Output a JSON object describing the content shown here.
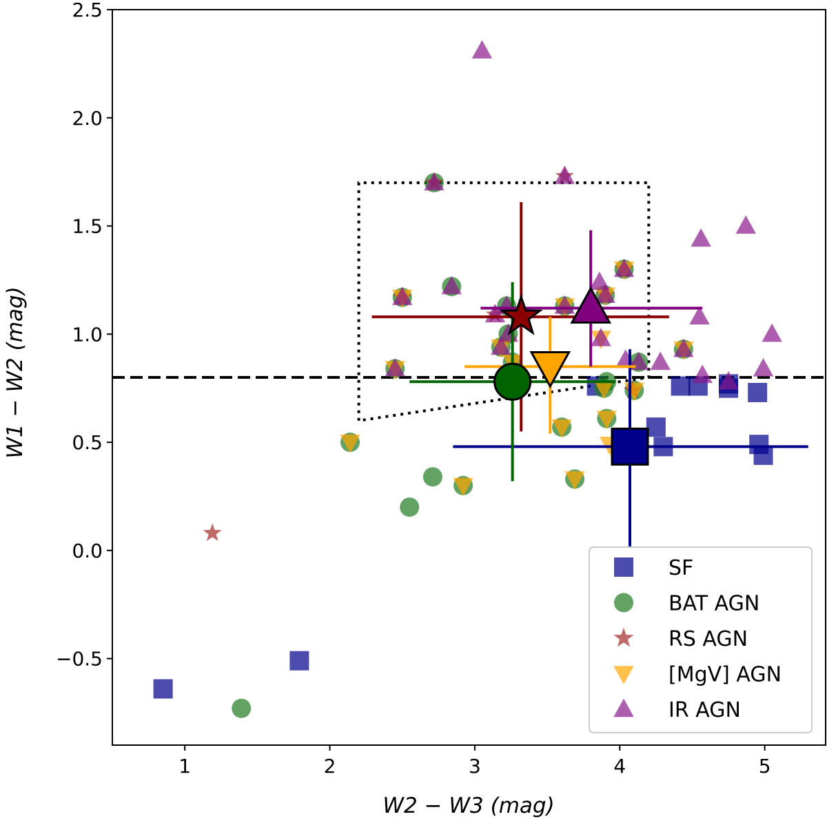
{
  "chart_data": {
    "type": "scatter",
    "title": "",
    "xlabel": "W2 − W3 (mag)",
    "ylabel": "W1 − W2 (mag)",
    "xlim": [
      0.5,
      5.42
    ],
    "ylim": [
      -0.9,
      2.5
    ],
    "xticks": [
      1,
      2,
      3,
      4,
      5
    ],
    "xtick_labels": [
      "1",
      "2",
      "3",
      "4",
      "5"
    ],
    "yticks": [
      -0.5,
      0.0,
      0.5,
      1.0,
      1.5,
      2.0,
      2.5
    ],
    "ytick_labels": [
      "−0.5",
      "0.0",
      "0.5",
      "1.0",
      "1.5",
      "2.0",
      "2.5"
    ],
    "grid": false,
    "legend_position": "bottom-right",
    "reference_lines": {
      "horizontal_dashed_y": 0.8,
      "dotted_wedge": [
        [
          2.2,
          0.6
        ],
        [
          2.2,
          1.7
        ],
        [
          4.2,
          1.7
        ],
        [
          4.2,
          0.8
        ],
        [
          2.2,
          0.6
        ]
      ]
    },
    "series": [
      {
        "name": "SF",
        "marker": "square",
        "color": "#00008b",
        "points": [
          [
            0.85,
            -0.64
          ],
          [
            1.79,
            -0.51
          ],
          [
            3.84,
            0.76
          ],
          [
            4.25,
            0.57
          ],
          [
            4.3,
            0.48
          ],
          [
            4.42,
            0.76
          ],
          [
            4.54,
            0.76
          ],
          [
            4.75,
            0.77
          ],
          [
            4.75,
            0.75
          ],
          [
            4.95,
            0.73
          ],
          [
            4.96,
            0.49
          ],
          [
            4.99,
            0.44
          ]
        ],
        "mean": {
          "x": 4.07,
          "y": 0.48,
          "xerr": [
            2.85,
            5.3
          ],
          "yerr": [
            0.01,
            0.93
          ]
        }
      },
      {
        "name": "BAT AGN",
        "marker": "circle",
        "color": "#006400",
        "points": [
          [
            1.39,
            -0.73
          ],
          [
            2.14,
            0.5
          ],
          [
            2.55,
            0.2
          ],
          [
            2.71,
            0.34
          ],
          [
            2.92,
            0.3
          ],
          [
            3.69,
            0.33
          ],
          [
            3.6,
            0.57
          ],
          [
            3.91,
            0.61
          ],
          [
            3.89,
            0.75
          ],
          [
            4.1,
            0.74
          ],
          [
            2.45,
            0.84
          ],
          [
            2.5,
            1.17
          ],
          [
            2.84,
            1.22
          ],
          [
            2.72,
            1.7
          ],
          [
            3.22,
            1.13
          ],
          [
            3.62,
            1.13
          ],
          [
            3.9,
            1.18
          ],
          [
            4.03,
            1.3
          ],
          [
            3.18,
            0.94
          ],
          [
            3.23,
            1.0
          ],
          [
            3.26,
            0.87
          ],
          [
            4.13,
            0.87
          ],
          [
            4.44,
            0.93
          ],
          [
            3.91,
            0.78
          ]
        ],
        "mean": {
          "x": 3.26,
          "y": 0.78,
          "xerr": [
            2.55,
            3.97
          ],
          "yerr": [
            0.32,
            1.24
          ]
        }
      },
      {
        "name": "RS AGN",
        "marker": "star",
        "color": "#8b0000",
        "points": [
          [
            1.19,
            0.08
          ],
          [
            2.72,
            1.7
          ],
          [
            3.62,
            1.73
          ],
          [
            3.14,
            1.09
          ],
          [
            4.03,
            1.3
          ],
          [
            2.5,
            1.17
          ],
          [
            3.9,
            1.18
          ],
          [
            4.09,
            0.74
          ]
        ],
        "mean": {
          "x": 3.32,
          "y": 1.08,
          "xerr": [
            2.29,
            4.34
          ],
          "yerr": [
            0.55,
            1.61
          ]
        }
      },
      {
        "name": "[MgV] AGN",
        "marker": "triangle-down",
        "color": "#ffa500",
        "points": [
          [
            2.14,
            0.5
          ],
          [
            2.5,
            1.17
          ],
          [
            2.92,
            0.3
          ],
          [
            3.69,
            0.33
          ],
          [
            3.6,
            0.57
          ],
          [
            3.91,
            0.61
          ],
          [
            3.89,
            0.75
          ],
          [
            4.1,
            0.74
          ],
          [
            2.45,
            0.84
          ],
          [
            3.18,
            0.94
          ],
          [
            3.26,
            0.87
          ],
          [
            4.03,
            1.3
          ],
          [
            3.9,
            1.18
          ],
          [
            3.87,
            0.98
          ],
          [
            4.44,
            0.93
          ],
          [
            3.62,
            1.13
          ],
          [
            3.93,
            0.49
          ]
        ],
        "mean": {
          "x": 3.52,
          "y": 0.85,
          "xerr": [
            2.93,
            4.11
          ],
          "yerr": [
            0.54,
            1.08
          ]
        }
      },
      {
        "name": "IR AGN",
        "marker": "triangle-up",
        "color": "#800080",
        "points": [
          [
            3.05,
            2.31
          ],
          [
            2.72,
            1.7
          ],
          [
            3.62,
            1.73
          ],
          [
            2.5,
            1.17
          ],
          [
            2.84,
            1.22
          ],
          [
            3.14,
            1.09
          ],
          [
            3.22,
            1.13
          ],
          [
            3.62,
            1.13
          ],
          [
            3.86,
            1.24
          ],
          [
            3.9,
            1.18
          ],
          [
            4.03,
            1.3
          ],
          [
            3.87,
            0.98
          ],
          [
            3.18,
            0.94
          ],
          [
            3.23,
            1.0
          ],
          [
            2.45,
            0.84
          ],
          [
            4.04,
            0.88
          ],
          [
            4.13,
            0.87
          ],
          [
            4.28,
            0.87
          ],
          [
            4.44,
            0.93
          ],
          [
            4.56,
            1.44
          ],
          [
            4.55,
            1.08
          ],
          [
            4.57,
            0.81
          ],
          [
            4.75,
            0.78
          ],
          [
            4.87,
            1.5
          ],
          [
            5.05,
            1.0
          ],
          [
            4.99,
            0.84
          ]
        ],
        "mean": {
          "x": 3.8,
          "y": 1.12,
          "xerr": [
            3.04,
            4.57
          ],
          "yerr": [
            0.85,
            1.48
          ]
        }
      }
    ]
  }
}
